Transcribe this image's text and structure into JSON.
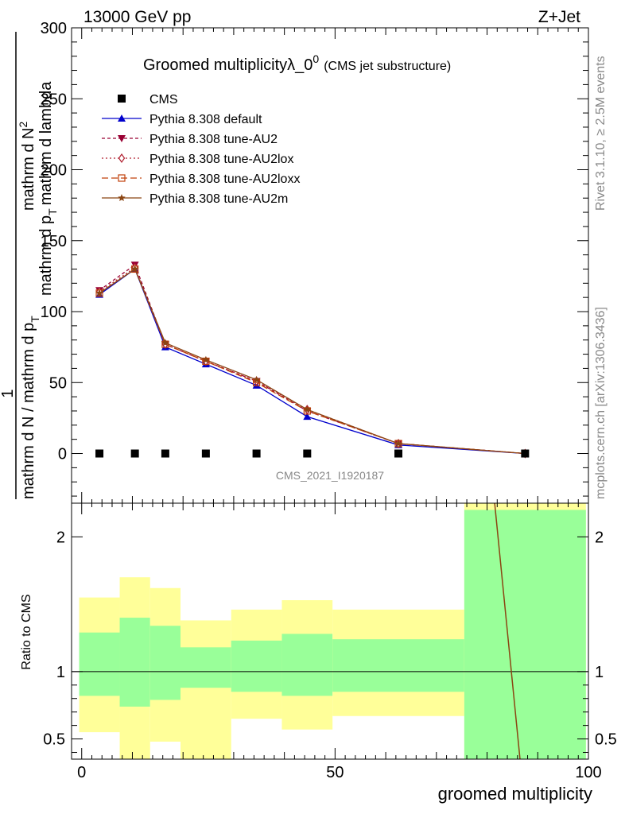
{
  "header": {
    "left": "13000 GeV pp",
    "right": "Z+Jet"
  },
  "side": {
    "rivet": "Rivet 3.1.10, ≥ 2.5M events",
    "mcplots": "mcplots.cern.ch [arXiv:1306.3436]"
  },
  "watermark": "CMS_2021_I1920187",
  "chart_data": {
    "type": "line",
    "title": "Groomed multiplicityλ_0",
    "title_sup": "0",
    "title_suffix": "(CMS jet substructure)",
    "ylabel_lines": [
      "1",
      "mathrm d N / mathrm d p",
      "T",
      "mathrm d N",
      "mathrm d p",
      "T",
      "mathrm d lambda"
    ],
    "ylabel_main_num": "mathrm d",
    "ylabel_main_den": "mathrm d p",
    "xlabel": "groomed multiplicity",
    "xlim": [
      -2,
      100
    ],
    "ylim": [
      -35,
      300
    ],
    "yticks_main": [
      "0",
      "50",
      "100",
      "150",
      "200",
      "250",
      "300"
    ],
    "xticks": [
      "0",
      "50",
      "100"
    ],
    "x": [
      3.5,
      10.5,
      16.5,
      24.5,
      34.5,
      44.5,
      62.5,
      87.5
    ],
    "data": {
      "name": "CMS",
      "color": "#000000",
      "values": [
        0,
        0,
        0,
        0,
        0,
        0,
        0,
        0
      ]
    },
    "series": [
      {
        "name": "Pythia 8.308 default",
        "color": "#0000cc",
        "marker": "triangle-up",
        "dash": "",
        "values": [
          112,
          130,
          75,
          63,
          48,
          26,
          6,
          0
        ]
      },
      {
        "name": "Pythia 8.308 tune-AU2",
        "color": "#990033",
        "marker": "triangle-down",
        "dash": "4,3",
        "values": [
          115,
          133,
          77,
          65,
          51,
          30,
          7,
          0
        ]
      },
      {
        "name": "Pythia 8.308 tune-AU2lox",
        "color": "#b01e2e",
        "marker": "diamond",
        "dash": "2,3",
        "values": [
          114,
          131,
          77,
          65,
          51,
          31,
          7,
          0
        ]
      },
      {
        "name": "Pythia 8.308 tune-AU2loxx",
        "color": "#c0400a",
        "marker": "square",
        "dash": "8,4",
        "values": [
          113,
          130,
          77,
          65,
          50,
          30,
          7,
          0
        ]
      },
      {
        "name": "Pythia 8.308 tune-AU2m",
        "color": "#8b4513",
        "marker": "star",
        "dash": "",
        "values": [
          113,
          130,
          78,
          66,
          52,
          31,
          7,
          0
        ]
      }
    ],
    "ratio": {
      "ylabel": "Ratio to CMS",
      "ylim": [
        0.35,
        2.25
      ],
      "yticks": [
        "0.5",
        "1",
        "2"
      ],
      "bins": [
        {
          "lo": -0.5,
          "hi": 7.5,
          "green": [
            0.82,
            1.29
          ],
          "yellow": [
            0.55,
            1.55
          ]
        },
        {
          "lo": 7.5,
          "hi": 13.5,
          "green": [
            0.74,
            1.4
          ],
          "yellow": [
            0.35,
            1.7
          ]
        },
        {
          "lo": 13.5,
          "hi": 19.5,
          "green": [
            0.79,
            1.34
          ],
          "yellow": [
            0.48,
            1.62
          ]
        },
        {
          "lo": 19.5,
          "hi": 29.5,
          "green": [
            0.88,
            1.18
          ],
          "yellow": [
            0.35,
            1.38
          ]
        },
        {
          "lo": 29.5,
          "hi": 39.5,
          "green": [
            0.85,
            1.23
          ],
          "yellow": [
            0.65,
            1.46
          ]
        },
        {
          "lo": 39.5,
          "hi": 49.5,
          "green": [
            0.82,
            1.28
          ],
          "yellow": [
            0.57,
            1.53
          ]
        },
        {
          "lo": 49.5,
          "hi": 75.5,
          "green": [
            0.85,
            1.24
          ],
          "yellow": [
            0.67,
            1.46
          ]
        },
        {
          "lo": 75.5,
          "hi": 99.5,
          "green": [
            0.35,
            2.2
          ],
          "yellow": [
            0.35,
            2.25
          ]
        }
      ],
      "line": {
        "x": [
          81.5,
          86.5
        ],
        "y": [
          2.25,
          0.35
        ],
        "color": "#8b4513"
      }
    }
  }
}
